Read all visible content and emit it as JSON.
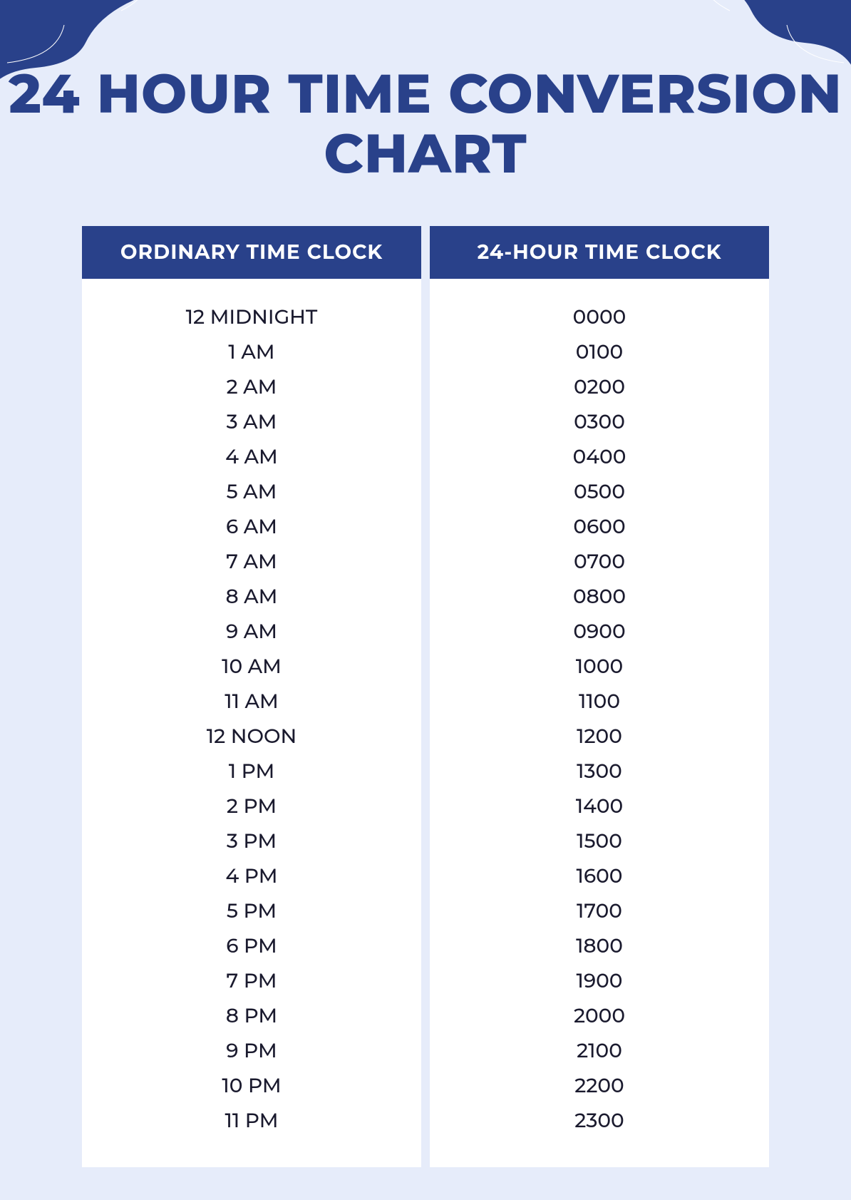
{
  "page": {
    "title": "24 HOUR TIME CONVERSION CHART",
    "background_color": "#e6ecfa",
    "accent_color": "#29418a",
    "title_color": "#29418a",
    "title_fontsize": 76,
    "cell_fontsize": 28,
    "cell_color": "#1a1a2e",
    "header_fontsize": 28,
    "header_bg": "#29418a",
    "header_fg": "#ffffff",
    "column_bg": "#ffffff"
  },
  "table": {
    "columns": [
      {
        "header": "ORDINARY TIME CLOCK"
      },
      {
        "header": "24-HOUR TIME CLOCK"
      }
    ],
    "rows": [
      {
        "ordinary": "12 MIDNIGHT",
        "military": "0000"
      },
      {
        "ordinary": "1 AM",
        "military": "0100"
      },
      {
        "ordinary": "2 AM",
        "military": "0200"
      },
      {
        "ordinary": "3 AM",
        "military": "0300"
      },
      {
        "ordinary": "4 AM",
        "military": "0400"
      },
      {
        "ordinary": "5 AM",
        "military": "0500"
      },
      {
        "ordinary": "6 AM",
        "military": "0600"
      },
      {
        "ordinary": "7 AM",
        "military": "0700"
      },
      {
        "ordinary": "8 AM",
        "military": "0800"
      },
      {
        "ordinary": "9 AM",
        "military": "0900"
      },
      {
        "ordinary": "10 AM",
        "military": "1000"
      },
      {
        "ordinary": "11 AM",
        "military": "1100"
      },
      {
        "ordinary": "12 NOON",
        "military": "1200"
      },
      {
        "ordinary": "1 PM",
        "military": "1300"
      },
      {
        "ordinary": "2 PM",
        "military": "1400"
      },
      {
        "ordinary": "3 PM",
        "military": "1500"
      },
      {
        "ordinary": "4 PM",
        "military": "1600"
      },
      {
        "ordinary": "5 PM",
        "military": "1700"
      },
      {
        "ordinary": "6 PM",
        "military": "1800"
      },
      {
        "ordinary": "7 PM",
        "military": "1900"
      },
      {
        "ordinary": "8 PM",
        "military": "2000"
      },
      {
        "ordinary": "9 PM",
        "military": "2100"
      },
      {
        "ordinary": "10 PM",
        "military": "2200"
      },
      {
        "ordinary": "11 PM",
        "military": "2300"
      }
    ]
  }
}
